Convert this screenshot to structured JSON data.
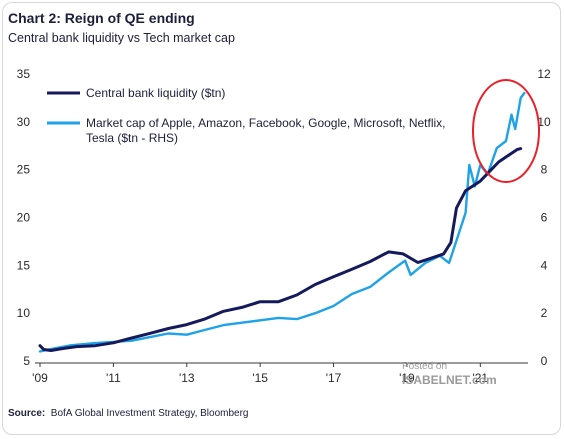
{
  "title": "Chart 2: Reign of QE ending",
  "subtitle": "Central bank liquidity vs Tech market cap",
  "source_label": "Source:",
  "source_text": "BofA Global Investment Strategy, Bloomberg",
  "watermark": {
    "line1": "Posted on",
    "line2": "ISABELNET.com"
  },
  "colors": {
    "liquidity": "#141a5c",
    "tech": "#1fa3e6",
    "circle": "#e8212b",
    "text": "#1b1f3b"
  },
  "chart_data": {
    "type": "line",
    "x_tick_labels": [
      "'09",
      "'11",
      "'13",
      "'15",
      "'17",
      "'19",
      "'21"
    ],
    "x_tick_years": [
      2009,
      2011,
      2013,
      2015,
      2017,
      2019,
      2021
    ],
    "xlim": [
      2009,
      2022.3
    ],
    "y_left": {
      "label": "",
      "lim": [
        5,
        35
      ],
      "ticks": [
        5,
        10,
        15,
        20,
        25,
        30,
        35
      ]
    },
    "y_right": {
      "label": "",
      "lim": [
        0,
        12
      ],
      "ticks": [
        0,
        2,
        4,
        6,
        8,
        10,
        12
      ]
    },
    "legend_position": "top-left",
    "grid": false,
    "annotation": "red circle around 2021-2022 peak",
    "series": [
      {
        "name": "Central bank liquidity ($tn)",
        "axis": "left",
        "points": [
          [
            2009.0,
            6.6
          ],
          [
            2009.1,
            6.2
          ],
          [
            2009.3,
            6.1
          ],
          [
            2009.6,
            6.3
          ],
          [
            2010.0,
            6.5
          ],
          [
            2010.5,
            6.6
          ],
          [
            2011.0,
            6.9
          ],
          [
            2011.5,
            7.4
          ],
          [
            2012.0,
            7.9
          ],
          [
            2012.5,
            8.4
          ],
          [
            2013.0,
            8.8
          ],
          [
            2013.5,
            9.4
          ],
          [
            2014.0,
            10.2
          ],
          [
            2014.5,
            10.6
          ],
          [
            2015.0,
            11.2
          ],
          [
            2015.5,
            11.2
          ],
          [
            2016.0,
            11.9
          ],
          [
            2016.5,
            13.0
          ],
          [
            2017.0,
            13.8
          ],
          [
            2017.5,
            14.6
          ],
          [
            2018.0,
            15.4
          ],
          [
            2018.5,
            16.4
          ],
          [
            2018.9,
            16.2
          ],
          [
            2019.3,
            15.3
          ],
          [
            2019.7,
            15.8
          ],
          [
            2020.0,
            16.2
          ],
          [
            2020.2,
            17.4
          ],
          [
            2020.35,
            21.0
          ],
          [
            2020.6,
            22.8
          ],
          [
            2021.0,
            23.8
          ],
          [
            2021.5,
            25.8
          ],
          [
            2022.0,
            27.1
          ],
          [
            2022.1,
            27.2
          ]
        ]
      },
      {
        "name": "Market cap of Apple, Amazon, Facebook, Google, Microsoft, Netflix, Tesla ($tn - RHS)",
        "legend_lines": [
          "Market cap of Apple, Amazon, Facebook, Google, Microsoft, Netflix,",
          "Tesla ($tn - RHS)"
        ],
        "axis": "right",
        "points": [
          [
            2009.0,
            0.4
          ],
          [
            2009.3,
            0.5
          ],
          [
            2009.8,
            0.65
          ],
          [
            2010.5,
            0.75
          ],
          [
            2011.0,
            0.8
          ],
          [
            2011.5,
            0.85
          ],
          [
            2012.0,
            1.0
          ],
          [
            2012.5,
            1.15
          ],
          [
            2013.0,
            1.1
          ],
          [
            2013.5,
            1.3
          ],
          [
            2014.0,
            1.5
          ],
          [
            2014.5,
            1.6
          ],
          [
            2015.0,
            1.7
          ],
          [
            2015.5,
            1.8
          ],
          [
            2016.0,
            1.75
          ],
          [
            2016.5,
            2.0
          ],
          [
            2017.0,
            2.3
          ],
          [
            2017.5,
            2.8
          ],
          [
            2018.0,
            3.1
          ],
          [
            2018.5,
            3.7
          ],
          [
            2018.95,
            4.2
          ],
          [
            2019.1,
            3.6
          ],
          [
            2019.5,
            4.1
          ],
          [
            2019.9,
            4.4
          ],
          [
            2020.15,
            4.1
          ],
          [
            2020.3,
            4.8
          ],
          [
            2020.6,
            6.2
          ],
          [
            2020.7,
            8.2
          ],
          [
            2020.85,
            7.3
          ],
          [
            2021.0,
            8.2
          ],
          [
            2021.2,
            7.8
          ],
          [
            2021.45,
            8.9
          ],
          [
            2021.7,
            9.2
          ],
          [
            2021.85,
            10.3
          ],
          [
            2021.95,
            9.7
          ],
          [
            2022.1,
            11.0
          ],
          [
            2022.2,
            11.2
          ]
        ]
      }
    ]
  }
}
